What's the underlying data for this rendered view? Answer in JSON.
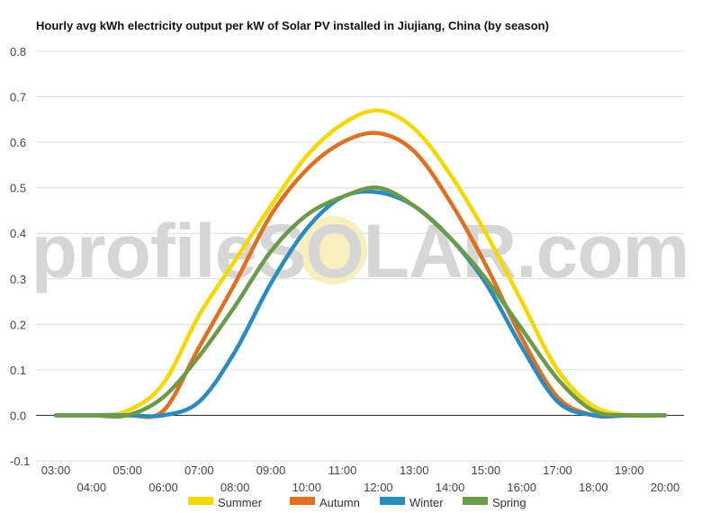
{
  "chart_data": {
    "type": "line",
    "title": "Hourly avg kWh electricity output per kW of Solar PV installed in Jiujiang, China (by season)",
    "watermark": "profileSOLAR.com",
    "ylim": [
      -0.1,
      0.8
    ],
    "yticks": [
      "0.8",
      "0.7",
      "0.6",
      "0.5",
      "0.4",
      "0.3",
      "0.2",
      "0.1",
      "0.0",
      "-0.1"
    ],
    "x": [
      "03:00",
      "04:00",
      "05:00",
      "06:00",
      "07:00",
      "08:00",
      "09:00",
      "10:00",
      "11:00",
      "12:00",
      "13:00",
      "14:00",
      "15:00",
      "16:00",
      "17:00",
      "18:00",
      "19:00",
      "20:00"
    ],
    "legend_position": "bottom",
    "series": [
      {
        "name": "Summer",
        "color": "#f5d800",
        "values": [
          0.0,
          0.0,
          0.01,
          0.07,
          0.22,
          0.34,
          0.46,
          0.57,
          0.64,
          0.67,
          0.63,
          0.53,
          0.4,
          0.25,
          0.1,
          0.02,
          0.0,
          0.0
        ]
      },
      {
        "name": "Autumn",
        "color": "#e07020",
        "values": [
          0.0,
          0.0,
          0.0,
          0.01,
          0.15,
          0.29,
          0.44,
          0.54,
          0.6,
          0.62,
          0.58,
          0.47,
          0.33,
          0.17,
          0.04,
          0.0,
          0.0,
          0.0
        ]
      },
      {
        "name": "Winter",
        "color": "#2a8bbf",
        "values": [
          0.0,
          0.0,
          0.0,
          0.0,
          0.03,
          0.14,
          0.29,
          0.41,
          0.48,
          0.49,
          0.46,
          0.39,
          0.29,
          0.15,
          0.03,
          0.0,
          0.0,
          0.0
        ]
      },
      {
        "name": "Spring",
        "color": "#6a9a4a",
        "values": [
          0.0,
          0.0,
          0.0,
          0.04,
          0.13,
          0.24,
          0.36,
          0.44,
          0.48,
          0.5,
          0.46,
          0.39,
          0.3,
          0.19,
          0.08,
          0.01,
          0.0,
          0.0
        ]
      }
    ]
  }
}
